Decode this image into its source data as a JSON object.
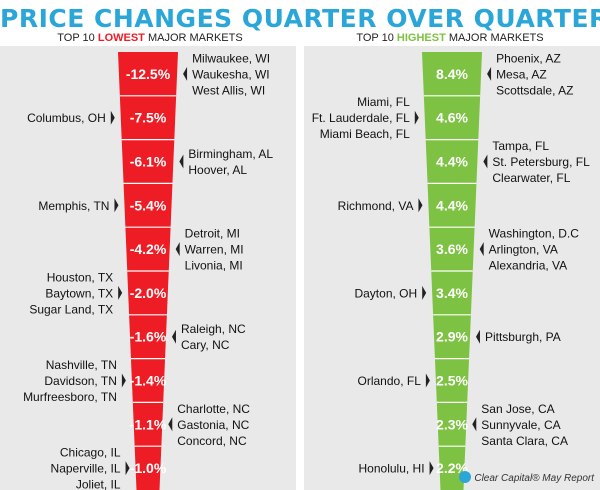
{
  "title": "PRICE CHANGES QUARTER OVER QUARTER",
  "subtitles": {
    "left": {
      "prefix": "TOP 10 ",
      "highlight": "LOWEST",
      "suffix": " MAJOR MARKETS"
    },
    "right": {
      "prefix": "TOP 10 ",
      "highlight": "HIGHEST",
      "suffix": " MAJOR MARKETS"
    }
  },
  "source": "Clear Capital® May Report",
  "colors": {
    "title": "#2ba6d8",
    "lowest": "#ee1c25",
    "highest": "#7dc242",
    "separator": "#ffffff",
    "panel": "#e9e9e9"
  },
  "chart_data": [
    {
      "type": "bar",
      "subtitle": "TOP 10 LOWEST MAJOR MARKETS",
      "unit": "%",
      "categories": [
        [
          "Milwaukee, WI",
          "Waukesha, WI",
          "West Allis, WI"
        ],
        [
          "Columbus, OH"
        ],
        [
          "Birmingham, AL",
          "Hoover, AL"
        ],
        [
          "Memphis, TN"
        ],
        [
          "Detroit, MI",
          "Warren, MI",
          "Livonia, MI"
        ],
        [
          "Houston, TX",
          "Baytown, TX",
          "Sugar Land, TX"
        ],
        [
          "Raleigh, NC",
          "Cary, NC"
        ],
        [
          "Nashville, TN",
          "Davidson, TN",
          "Murfreesboro, TN"
        ],
        [
          "Charlotte, NC",
          "Gastonia, NC",
          "Concord, NC"
        ],
        [
          "Chicago, IL",
          "Naperville, IL",
          "Joliet, IL"
        ]
      ],
      "labels": [
        "-12.5%",
        "-7.5%",
        "-6.1%",
        "-5.4%",
        "-4.2%",
        "-2.0%",
        "-1.6%",
        "-1.4%",
        "-1.1%",
        "-1.0%"
      ],
      "label_side": [
        "right",
        "left",
        "right",
        "left",
        "right",
        "left",
        "right",
        "left",
        "right",
        "left"
      ],
      "values": [
        -12.5,
        -7.5,
        -6.1,
        -5.4,
        -4.2,
        -2.0,
        -1.6,
        -1.4,
        -1.1,
        -1.0
      ]
    },
    {
      "type": "bar",
      "subtitle": "TOP 10 HIGHEST MAJOR MARKETS",
      "unit": "%",
      "categories": [
        [
          "Phoenix, AZ",
          "Mesa, AZ",
          "Scottsdale, AZ"
        ],
        [
          "Miami, FL",
          "Ft. Lauderdale, FL",
          "Miami Beach, FL"
        ],
        [
          "Tampa, FL",
          "St. Petersburg, FL",
          "Clearwater, FL"
        ],
        [
          "Richmond, VA"
        ],
        [
          "Washington, D.C",
          "Arlington, VA",
          "Alexandria, VA"
        ],
        [
          "Dayton, OH"
        ],
        [
          "Pittsburgh, PA"
        ],
        [
          "Orlando, FL"
        ],
        [
          "San Jose, CA",
          "Sunnyvale, CA",
          "Santa Clara, CA"
        ],
        [
          "Honolulu, HI"
        ]
      ],
      "labels": [
        "8.4%",
        "4.6%",
        "4.4%",
        "4.4%",
        "3.6%",
        "3.4%",
        "2.9%",
        "2.5%",
        "2.3%",
        "2.2%"
      ],
      "label_side": [
        "right",
        "left",
        "right",
        "left",
        "right",
        "left",
        "right",
        "left",
        "right",
        "left"
      ],
      "values": [
        8.4,
        4.6,
        4.4,
        4.4,
        3.6,
        3.4,
        2.9,
        2.5,
        2.3,
        2.2
      ]
    }
  ]
}
